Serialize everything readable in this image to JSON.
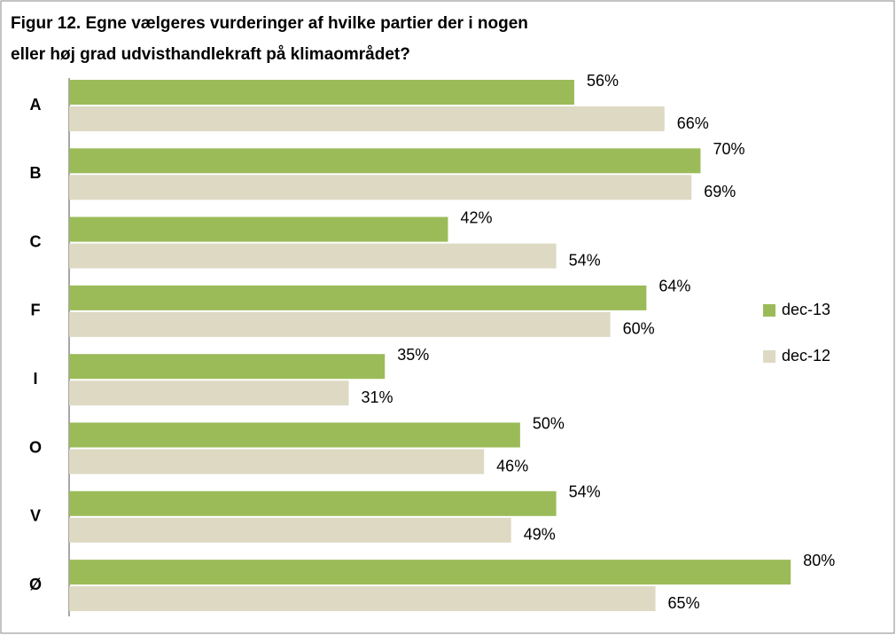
{
  "chart_data": {
    "type": "bar",
    "orientation": "horizontal",
    "title": [
      "Figur 12. Egne vælgeres vurderinger af hvilke partier der i nogen",
      "eller høj grad udvisthandlekraft på klimaområdet?"
    ],
    "categories": [
      "A",
      "B",
      "C",
      "F",
      "I",
      "O",
      "V",
      "Ø"
    ],
    "series": [
      {
        "name": "dec-13",
        "color": "#9bbb59",
        "values": [
          56,
          70,
          42,
          64,
          35,
          50,
          54,
          80
        ],
        "value_labels": [
          "56%",
          "70%",
          "42%",
          "64%",
          "35%",
          "50%",
          "54%",
          "80%"
        ]
      },
      {
        "name": "dec-12",
        "color": "#ddd9c3",
        "values": [
          66,
          69,
          54,
          60,
          31,
          46,
          49,
          65
        ],
        "value_labels": [
          "66%",
          "69%",
          "54%",
          "60%",
          "31%",
          "46%",
          "49%",
          "65%"
        ]
      }
    ],
    "xlim": [
      0,
      90
    ],
    "legend": "right"
  }
}
